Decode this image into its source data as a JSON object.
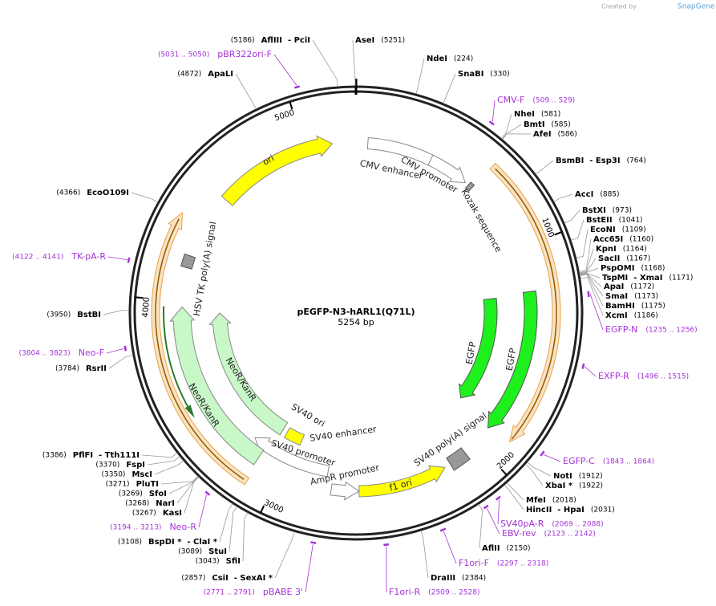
{
  "header": {
    "credit": "Created by",
    "brand": "SnapGene"
  },
  "plasmid": {
    "name": "pEGFP-N3-hARL1(Q71L)",
    "length": {
      "value": 5254,
      "label": "5254 bp"
    }
  },
  "ring_ticks": [
    1000,
    2000,
    3000,
    4000,
    5000
  ],
  "sites": [
    {
      "name": "AseI",
      "position": {
        "value": 5251,
        "label": "(5251)"
      }
    },
    {
      "name": "NdeI",
      "position": {
        "value": 224,
        "label": "(224)"
      }
    },
    {
      "name": "SnaBI",
      "position": {
        "value": 330,
        "label": "(330)"
      }
    },
    {
      "name": "NheI",
      "position": {
        "value": 581,
        "label": "(581)"
      }
    },
    {
      "name": "BmtI",
      "position": {
        "value": 585,
        "label": "(585)"
      }
    },
    {
      "name": "AfeI",
      "position": {
        "value": 586,
        "label": "(586)"
      }
    },
    {
      "name": "BsmBI  - Esp3I",
      "position": {
        "value": 764,
        "label": "(764)"
      }
    },
    {
      "name": "AccI",
      "position": {
        "value": 885,
        "label": "(885)"
      }
    },
    {
      "name": "BstXI",
      "position": {
        "value": 973,
        "label": "(973)"
      }
    },
    {
      "name": "BstEII",
      "position": {
        "value": 1041,
        "label": "(1041)"
      }
    },
    {
      "name": "EcoNI",
      "position": {
        "value": 1109,
        "label": "(1109)"
      }
    },
    {
      "name": "Acc65I",
      "position": {
        "value": 1160,
        "label": "(1160)"
      }
    },
    {
      "name": "KpnI",
      "position": {
        "value": 1164,
        "label": "(1164)"
      }
    },
    {
      "name": "SacII",
      "position": {
        "value": 1167,
        "label": "(1167)"
      }
    },
    {
      "name": "PspOMI",
      "position": {
        "value": 1168,
        "label": "(1168)"
      }
    },
    {
      "name": "TspMI  - XmaI",
      "position": {
        "value": 1171,
        "label": "(1171)"
      }
    },
    {
      "name": "ApaI",
      "position": {
        "value": 1172,
        "label": "(1172)"
      }
    },
    {
      "name": "SmaI",
      "position": {
        "value": 1173,
        "label": "(1173)"
      }
    },
    {
      "name": "BamHI",
      "position": {
        "value": 1175,
        "label": "(1175)"
      }
    },
    {
      "name": "XcmI",
      "position": {
        "value": 1186,
        "label": "(1186)"
      }
    },
    {
      "name": "NotI",
      "position": {
        "value": 1912,
        "label": "(1912)"
      }
    },
    {
      "name": "XbaI *",
      "position": {
        "value": 1922,
        "label": "(1922)"
      }
    },
    {
      "name": "MfeI",
      "position": {
        "value": 2018,
        "label": "(2018)"
      }
    },
    {
      "name": "HincII  - HpaI",
      "position": {
        "value": 2031,
        "label": "(2031)"
      }
    },
    {
      "name": "AflII",
      "position": {
        "value": 2150,
        "label": "(2150)"
      }
    },
    {
      "name": "DraIII",
      "position": {
        "value": 2384,
        "label": "(2384)"
      }
    },
    {
      "name": "AflIII  - PciI",
      "position": {
        "value": 5186,
        "label": "(5186)"
      }
    },
    {
      "name": "ApaLI",
      "position": {
        "value": 4872,
        "label": "(4872)"
      }
    },
    {
      "name": "EcoO109I",
      "position": {
        "value": 4366,
        "label": "(4366)"
      }
    },
    {
      "name": "BstBI",
      "position": {
        "value": 3950,
        "label": "(3950)"
      }
    },
    {
      "name": "RsrII",
      "position": {
        "value": 3784,
        "label": "(3784)"
      }
    },
    {
      "name": "PflFI  - Tth111I",
      "position": {
        "value": 3386,
        "label": "(3386)"
      }
    },
    {
      "name": "FspI",
      "position": {
        "value": 3370,
        "label": "(3370)"
      }
    },
    {
      "name": "MscI",
      "position": {
        "value": 3350,
        "label": "(3350)"
      }
    },
    {
      "name": "PluTI",
      "position": {
        "value": 3271,
        "label": "(3271)"
      }
    },
    {
      "name": "SfoI",
      "position": {
        "value": 3269,
        "label": "(3269)"
      }
    },
    {
      "name": "NarI",
      "position": {
        "value": 3268,
        "label": "(3268)"
      }
    },
    {
      "name": "KasI",
      "position": {
        "value": 3267,
        "label": "(3267)"
      }
    },
    {
      "name": "BspDI *  - ClaI *",
      "position": {
        "value": 3108,
        "label": "(3108)"
      }
    },
    {
      "name": "StuI",
      "position": {
        "value": 3089,
        "label": "(3089)"
      }
    },
    {
      "name": "SfiI",
      "position": {
        "value": 3043,
        "label": "(3043)"
      }
    },
    {
      "name": "CsiI  - SexAI *",
      "position": {
        "value": 2857,
        "label": "(2857)"
      }
    }
  ],
  "primers": [
    {
      "name": "pBR322ori-F",
      "range": {
        "start": 5031,
        "end": 5050,
        "label": "(5031 .. 5050)"
      }
    },
    {
      "name": "CMV-F",
      "range": {
        "start": 509,
        "end": 529,
        "label": "(509 .. 529)"
      }
    },
    {
      "name": "EGFP-N",
      "range": {
        "start": 1235,
        "end": 1256,
        "label": "(1235 .. 1256)"
      }
    },
    {
      "name": "EXFP-R",
      "range": {
        "start": 1496,
        "end": 1515,
        "label": "(1496 .. 1515)"
      }
    },
    {
      "name": "EGFP-C",
      "range": {
        "start": 1843,
        "end": 1864,
        "label": "(1843 .. 1864)"
      }
    },
    {
      "name": "SV40pA-R",
      "range": {
        "start": 2069,
        "end": 2088,
        "label": "(2069 .. 2088)"
      }
    },
    {
      "name": "EBV-rev",
      "range": {
        "start": 2123,
        "end": 2142,
        "label": "(2123 .. 2142)"
      }
    },
    {
      "name": "F1ori-F",
      "range": {
        "start": 2297,
        "end": 2318,
        "label": "(2297 .. 2318)"
      }
    },
    {
      "name": "F1ori-R",
      "range": {
        "start": 2509,
        "end": 2528,
        "label": "(2509 .. 2528)"
      }
    },
    {
      "name": "pBABE 3'",
      "range": {
        "start": 2771,
        "end": 2791,
        "label": "(2771 .. 2791)"
      }
    },
    {
      "name": "Neo-R",
      "range": {
        "start": 3194,
        "end": 3213,
        "label": "(3194 .. 3213)"
      }
    },
    {
      "name": "Neo-F",
      "range": {
        "start": 3804,
        "end": 3823,
        "label": "(3804 .. 3823)"
      }
    },
    {
      "name": "TK-pA-R",
      "range": {
        "start": 4122,
        "end": 4141,
        "label": "(4122 .. 4141)"
      }
    }
  ],
  "features": [
    {
      "name": "ori"
    },
    {
      "name": "CMV enhancer"
    },
    {
      "name": "CMV promoter"
    },
    {
      "name": "Kozak sequence"
    },
    {
      "name": "EGFP"
    },
    {
      "name": "EGFP"
    },
    {
      "name": "SV40 poly(A) signal"
    },
    {
      "name": "f1 ori"
    },
    {
      "name": "AmpR promoter"
    },
    {
      "name": "SV40 promoter"
    },
    {
      "name": "SV40 enhancer"
    },
    {
      "name": "SV40 ori"
    },
    {
      "name": "NeoR/KanR"
    },
    {
      "name": "NeoR/KanR"
    },
    {
      "name": "HSV TK poly(A) signal"
    }
  ]
}
